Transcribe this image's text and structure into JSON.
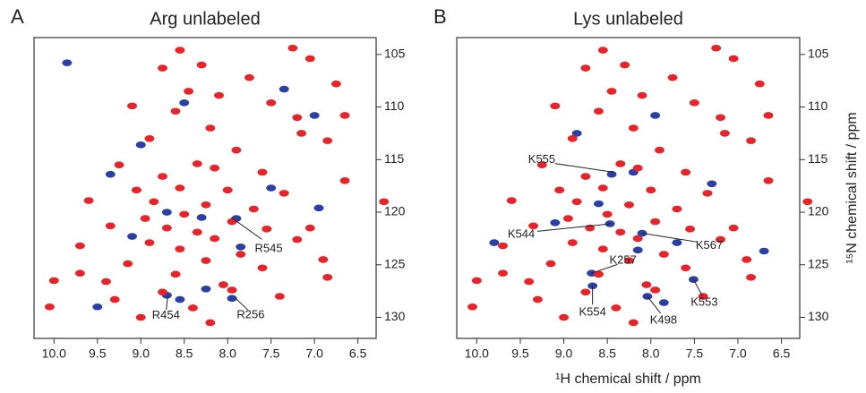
{
  "chart_data": [
    {
      "type": "scatter",
      "panel_label": "A",
      "title": "Arg unlabeled",
      "xlim": [
        10.23,
        6.29
      ],
      "ylim": [
        103.4,
        132
      ],
      "xticks": [
        {
          "value": 10,
          "label": "10.0"
        },
        9.5,
        {
          "value": 9,
          "label": "9.0"
        },
        8.5,
        {
          "value": 8,
          "label": "8.0"
        },
        7.5,
        {
          "value": 7,
          "label": "7.0"
        },
        6.5
      ],
      "yticks": [
        105,
        110,
        115,
        120,
        125,
        130
      ],
      "series": [
        {
          "color": "#2b3fa6",
          "x": [
            8.5,
            9.35,
            8.3,
            9.1,
            8.7,
            7.9,
            7.5,
            7.0,
            7.35,
            9.0,
            8.25,
            7.95,
            8.7,
            9.5,
            9.85,
            6.95,
            8.55,
            7.85
          ],
          "values": [
            109.6,
            116.4,
            120.5,
            122.3,
            120.0,
            120.6,
            117.7,
            110.8,
            108.3,
            113.6,
            127.3,
            128.2,
            127.9,
            129.0,
            105.8,
            119.6,
            128.3,
            123.3
          ]
        },
        {
          "color": "#e8242a",
          "x": [
            8.55,
            7.25,
            7.05,
            8.3,
            8.75,
            7.75,
            6.75,
            8.45,
            8.1,
            7.5,
            9.1,
            8.6,
            7.2,
            6.65,
            7.15,
            6.85,
            8.2,
            8.9,
            7.9,
            8.35,
            8.15,
            9.25,
            7.6,
            8.75,
            9.05,
            8.55,
            8.0,
            7.35,
            9.6,
            8.85,
            8.25,
            7.7,
            8.5,
            8.95,
            7.95,
            6.2,
            8.7,
            8.35,
            9.35,
            7.55,
            8.15,
            8.9,
            7.2,
            8.55,
            9.7,
            7.85,
            8.25,
            9.15,
            6.9,
            7.6,
            8.6,
            10.0,
            9.4,
            8.05,
            6.85,
            8.75,
            9.3,
            7.4,
            8.4,
            9.0,
            8.2,
            10.05,
            7.95,
            9.7,
            6.65,
            7.05
          ],
          "values": [
            104.6,
            104.4,
            105.4,
            106.0,
            106.3,
            107.2,
            107.8,
            108.5,
            108.9,
            109.6,
            109.9,
            110.4,
            111.0,
            110.8,
            112.5,
            113.2,
            112.0,
            113.0,
            114.1,
            115.4,
            115.8,
            115.5,
            116.2,
            116.6,
            117.9,
            117.7,
            117.9,
            118.2,
            118.9,
            119.0,
            119.3,
            119.7,
            120.2,
            120.6,
            120.9,
            119.0,
            121.5,
            121.9,
            121.3,
            121.6,
            122.5,
            122.9,
            122.6,
            123.5,
            123.2,
            124.0,
            124.6,
            124.9,
            124.5,
            125.3,
            125.9,
            126.5,
            126.6,
            126.9,
            126.2,
            127.6,
            128.3,
            128.0,
            129.1,
            130.0,
            130.5,
            129.0,
            127.4,
            125.8,
            117.0,
            121.5
          ]
        }
      ],
      "annotations": [
        {
          "text": "R545",
          "x": 7.96,
          "y": 120.5
        },
        {
          "text": "R454",
          "x": 8.69,
          "y": 127.97
        },
        {
          "text": "R256",
          "x": 7.92,
          "y": 128.1
        }
      ]
    },
    {
      "type": "scatter",
      "panel_label": "B",
      "title": "Lys unlabeled",
      "xlabel": "¹H chemical shift / ppm",
      "ylabel": "¹⁵N chemical shift / ppm",
      "xlim": [
        10.23,
        6.29
      ],
      "ylim": [
        103.4,
        132
      ],
      "xticks": [
        {
          "value": 10,
          "label": "10.0"
        },
        9.5,
        {
          "value": 9,
          "label": "9.0"
        },
        8.5,
        {
          "value": 8,
          "label": "8.0"
        },
        7.5,
        {
          "value": 7,
          "label": "7.0"
        },
        6.5
      ],
      "yticks": [
        105,
        110,
        115,
        120,
        125,
        130
      ],
      "series": [
        {
          "color": "#2b3fa6",
          "x": [
            8.45,
            8.2,
            8.47,
            8.1,
            8.68,
            8.67,
            8.04,
            7.51,
            7.7,
            9.8,
            8.85,
            7.95,
            8.15,
            7.3,
            9.1,
            8.6,
            7.85,
            6.7
          ],
          "values": [
            116.4,
            116.2,
            121.1,
            122.0,
            125.8,
            127.0,
            128.0,
            126.4,
            122.9,
            122.9,
            112.5,
            110.8,
            123.6,
            117.3,
            121.0,
            119.2,
            128.6,
            123.7
          ]
        },
        {
          "color": "#e8242a",
          "x": [
            8.55,
            7.25,
            7.05,
            8.3,
            8.75,
            7.75,
            6.75,
            8.45,
            8.1,
            7.5,
            9.1,
            8.6,
            7.2,
            6.65,
            7.15,
            6.85,
            8.2,
            8.9,
            7.9,
            8.35,
            8.15,
            9.25,
            7.6,
            8.75,
            9.05,
            8.55,
            8.0,
            7.35,
            9.6,
            8.85,
            8.25,
            7.7,
            8.5,
            8.95,
            7.95,
            6.2,
            8.7,
            8.35,
            9.35,
            7.55,
            8.15,
            8.9,
            7.2,
            8.55,
            9.7,
            7.85,
            8.25,
            9.15,
            6.9,
            7.6,
            8.6,
            10.0,
            9.4,
            8.05,
            6.85,
            8.75,
            9.3,
            7.4,
            8.4,
            9.0,
            8.2,
            10.05,
            7.95,
            9.7,
            6.65,
            7.05
          ],
          "values": [
            104.6,
            104.4,
            105.4,
            106.0,
            106.3,
            107.2,
            107.8,
            108.5,
            108.9,
            109.6,
            109.9,
            110.4,
            111.0,
            110.8,
            112.5,
            113.2,
            112.0,
            113.0,
            114.1,
            115.4,
            115.8,
            115.5,
            116.2,
            116.6,
            117.9,
            117.7,
            117.9,
            118.2,
            118.9,
            119.0,
            119.3,
            119.7,
            120.2,
            120.6,
            120.9,
            119.0,
            121.5,
            121.9,
            121.3,
            121.6,
            122.5,
            122.9,
            122.6,
            123.5,
            123.2,
            124.0,
            124.6,
            124.9,
            124.5,
            125.3,
            125.9,
            126.5,
            126.6,
            126.9,
            126.2,
            127.6,
            128.3,
            128.0,
            129.1,
            130.0,
            130.5,
            129.0,
            127.4,
            125.8,
            117.0,
            121.5
          ]
        }
      ],
      "annotations": [
        {
          "text": "K555",
          "x": 8.43,
          "y": 116.2
        },
        {
          "text": "K544",
          "x": 8.46,
          "y": 121.1
        },
        {
          "text": "K567",
          "x": 8.1,
          "y": 122.0
        },
        {
          "text": "K257",
          "x": 8.68,
          "y": 125.8
        },
        {
          "text": "K554",
          "x": 8.67,
          "y": 127.0
        },
        {
          "text": "K498",
          "x": 8.04,
          "y": 128.0
        },
        {
          "text": "K553",
          "x": 7.51,
          "y": 126.4
        }
      ]
    }
  ]
}
